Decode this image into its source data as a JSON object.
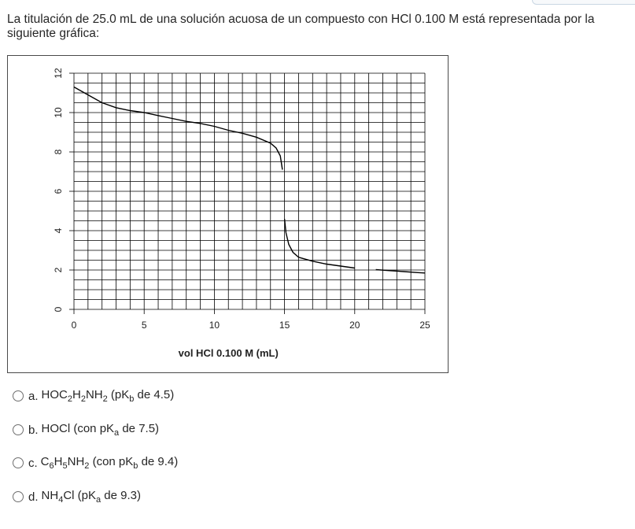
{
  "question": {
    "text": "La titulación de 25.0 mL de una solución acuosa de un compuesto con HCl 0.100 M está representada por la siguiente gráfica:"
  },
  "chart_data": {
    "type": "line",
    "xlabel": "vol HCl 0.100 M (mL)",
    "ylabel": "",
    "xlim": [
      0,
      25
    ],
    "ylim": [
      0,
      12
    ],
    "xticks": [
      0,
      5,
      10,
      15,
      20,
      25
    ],
    "yticks": [
      0,
      2,
      4,
      6,
      8,
      10,
      12
    ],
    "grid": true,
    "series": [
      {
        "x": [
          0,
          1,
          2,
          3,
          4,
          5,
          6,
          7,
          8,
          9,
          10,
          11,
          12,
          13,
          14,
          14.4,
          14.7,
          14.85
        ],
        "y": [
          11.3,
          10.9,
          10.5,
          10.25,
          10.1,
          10.0,
          9.85,
          9.7,
          9.55,
          9.45,
          9.3,
          9.1,
          8.95,
          8.75,
          8.45,
          8.2,
          7.8,
          7.1
        ]
      },
      {
        "x": [
          15.0,
          15.1,
          15.3,
          15.6,
          16.0,
          17.0,
          18.0,
          19.0,
          20.0
        ],
        "y": [
          4.6,
          3.9,
          3.3,
          2.9,
          2.65,
          2.45,
          2.3,
          2.2,
          2.1
        ]
      },
      {
        "x": [
          21.5,
          22.5,
          23.5,
          24.5,
          25.0
        ],
        "y": [
          2.02,
          1.97,
          1.92,
          1.87,
          1.85
        ]
      }
    ]
  },
  "options": [
    {
      "letter": "a.",
      "parts": [
        [
          "HOC",
          ""
        ],
        [
          "2",
          "sub"
        ],
        [
          "H",
          ""
        ],
        [
          "2",
          "sub"
        ],
        [
          "NH",
          ""
        ],
        [
          "2",
          "sub"
        ],
        [
          " (pK",
          ""
        ],
        [
          "b",
          "sub"
        ],
        [
          " de 4.5)",
          ""
        ]
      ]
    },
    {
      "letter": "b.",
      "parts": [
        [
          "HOCl (con pK",
          ""
        ],
        [
          "a",
          "sub"
        ],
        [
          " de 7.5)",
          ""
        ]
      ]
    },
    {
      "letter": "c.",
      "parts": [
        [
          "C",
          ""
        ],
        [
          "6",
          "sub"
        ],
        [
          "H",
          ""
        ],
        [
          "5",
          "sub"
        ],
        [
          "NH",
          ""
        ],
        [
          "2",
          "sub"
        ],
        [
          " (con pK",
          ""
        ],
        [
          "b",
          "sub"
        ],
        [
          " de 9.4)",
          ""
        ]
      ]
    },
    {
      "letter": "d.",
      "parts": [
        [
          "NH",
          ""
        ],
        [
          "4",
          "sub"
        ],
        [
          "Cl (pK",
          ""
        ],
        [
          "a",
          "sub"
        ],
        [
          " de 9.3)",
          ""
        ]
      ]
    }
  ]
}
